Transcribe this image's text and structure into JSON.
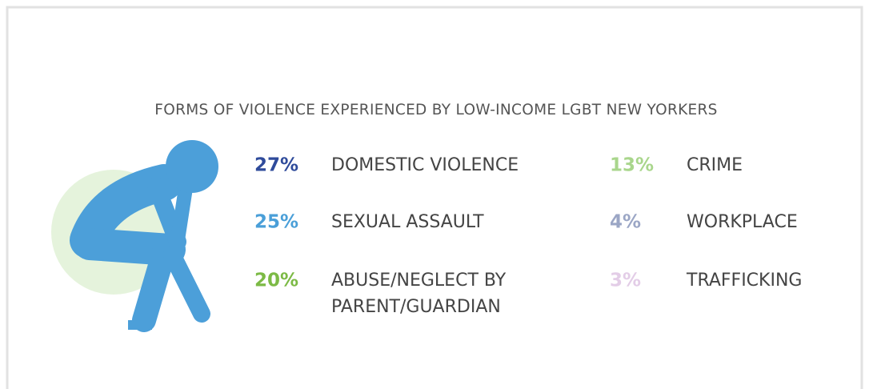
{
  "title": "FORMS OF VIOLENCE EXPERIENCED BY LOW-INCOME LGBT NEW YORKERS",
  "items": [
    {
      "percent": "27%",
      "label_lines": [
        "DOMESTIC VIOLENCE"
      ],
      "color": "#2f4b9b"
    },
    {
      "percent": "25%",
      "label_lines": [
        "SEXUAL ASSAULT"
      ],
      "color": "#4a9fd8"
    },
    {
      "percent": "20%",
      "label_lines": [
        "ABUSE/NEGLECT BY",
        "PARENT/GUARDIAN"
      ],
      "color": "#7cba45"
    },
    {
      "percent": "13%",
      "label_lines": [
        "CRIME"
      ],
      "color": "#a9d68c"
    },
    {
      "percent": "4%",
      "label_lines": [
        "WORKPLACE"
      ],
      "color": "#9ba6c5"
    },
    {
      "percent": "3%",
      "label_lines": [
        "TRAFFICKING"
      ],
      "color": "#e3cde7"
    }
  ]
}
